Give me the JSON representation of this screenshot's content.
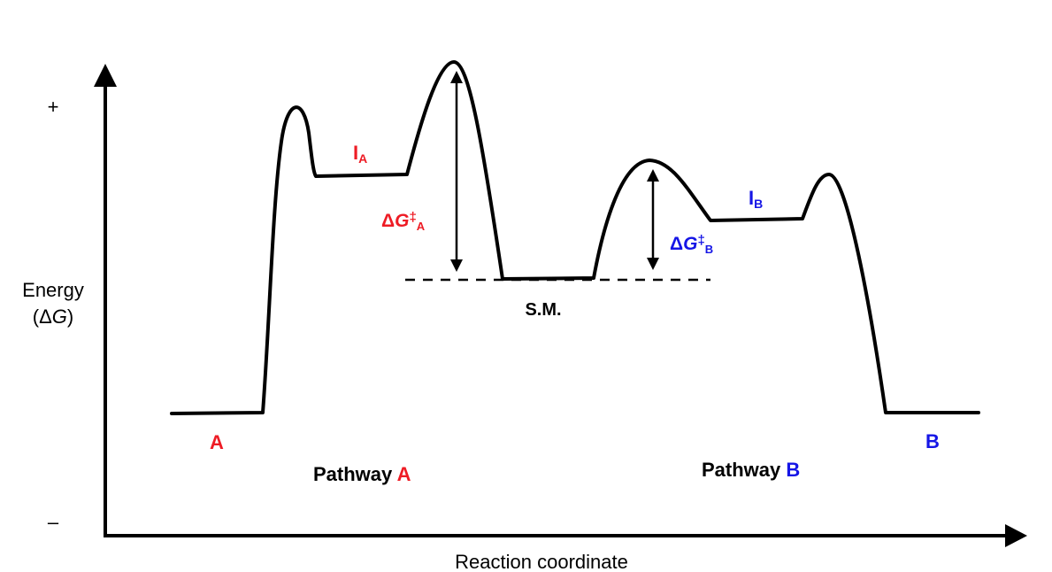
{
  "axes": {
    "y_label_line1": "Energy",
    "y_label_open": "(Δ",
    "y_label_var": "G",
    "y_label_close": ")",
    "y_plus": "+",
    "y_minus": "–",
    "x_label": "Reaction coordinate"
  },
  "species": {
    "product_a": "A",
    "product_b": "B",
    "starting_material": "S.M.",
    "intermediate_a_main": "I",
    "intermediate_a_sub": "A",
    "intermediate_b_main": "I",
    "intermediate_b_sub": "B"
  },
  "barriers": {
    "a_delta": "Δ",
    "a_var": "G",
    "a_dagger": "‡",
    "a_sub": "A",
    "b_delta": "Δ",
    "b_var": "G",
    "b_dagger": "‡",
    "b_sub": "B"
  },
  "pathways": {
    "a_prefix": "Pathway ",
    "a_name": "A",
    "b_prefix": "Pathway ",
    "b_name": "B"
  },
  "colors": {
    "pathway_a": "#ee1c25",
    "pathway_b": "#1515e6",
    "line": "#000000"
  }
}
